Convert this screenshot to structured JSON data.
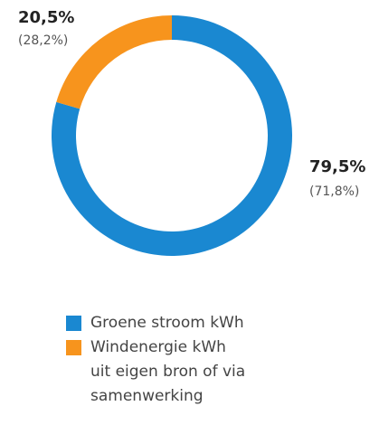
{
  "chart_data": {
    "type": "donut",
    "categories": [
      "Groene stroom kWh",
      "Windenergie kWh\nuit eigen bron of via\nsamenwerking"
    ],
    "values": [
      79.5,
      20.5
    ],
    "value_labels": [
      "79,5%",
      "20,5%"
    ],
    "secondary_labels": [
      "(71,8%)",
      "(28,2%)"
    ],
    "colors": [
      "#1a88d1",
      "#f7941d"
    ]
  }
}
